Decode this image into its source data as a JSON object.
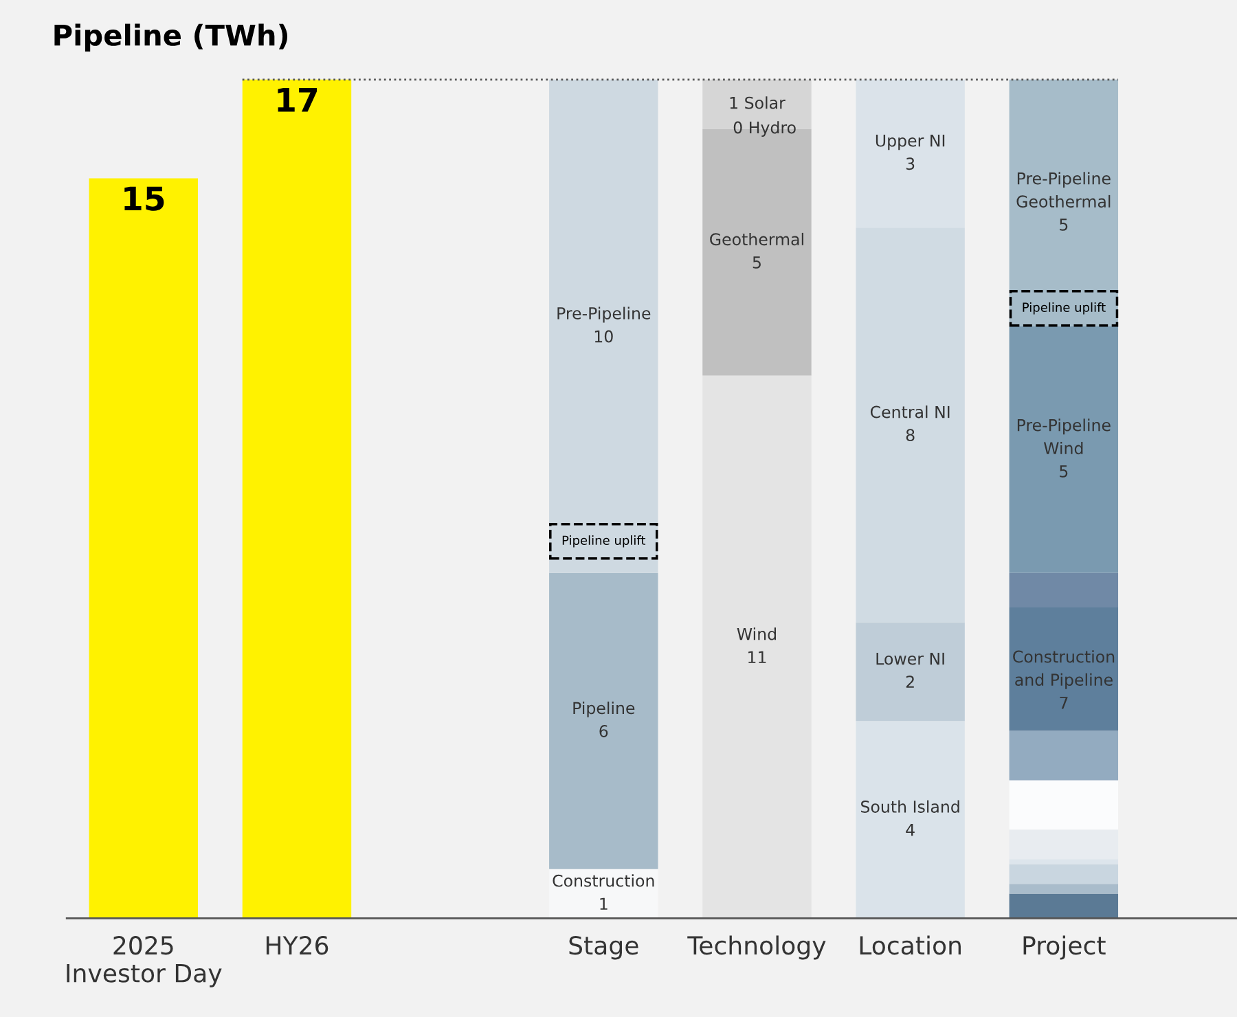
{
  "chart_data": {
    "type": "bar",
    "title": "Pipeline (TWh)",
    "stacked": true,
    "categories": [
      "2025\nInvestor Day",
      "HY26",
      null,
      "Stage",
      "Technology",
      "Location",
      "Project"
    ],
    "tick_labels": "x",
    "grid": false,
    "legend": false,
    "series": [
      {
        "values": [
          15,
          17,
          null,
          1,
          11,
          4,
          0.5
        ],
        "colors": [
          "#fff200",
          "#fff200",
          "#ffffff",
          "#f7f8f9",
          "#e4e4e4",
          "#dae3ea",
          "#5b7a95"
        ],
        "value_labels": [
          "15",
          "17",
          null,
          "Construction\n1",
          "Wind\n11",
          "South Island\n4",
          null
        ]
      },
      {
        "values": [
          null,
          null,
          null,
          6,
          5,
          2,
          0.2
        ],
        "colors": [
          "#ffffff",
          "#ffffff",
          "#ffffff",
          "#a7bbc9",
          "#c0c0c0",
          "#bfcdd8",
          "#a9bccb"
        ],
        "value_labels": [
          null,
          null,
          null,
          "Pipeline\n6",
          "Geothermal\n5",
          "Lower NI\n2",
          null
        ]
      },
      {
        "values": [
          null,
          null,
          null,
          10,
          0,
          8,
          0.4
        ],
        "colors": [
          "#ffffff",
          "#ffffff",
          "#ffffff",
          "#ced9e1",
          "#c8d8e8",
          "#d0dbe3",
          "#c9d6e0"
        ],
        "value_labels": [
          null,
          null,
          null,
          "Pre-Pipeline\n10",
          "0 Hydro",
          "Central NI\n8",
          null
        ]
      },
      {
        "values": [
          null,
          null,
          null,
          null,
          1,
          3,
          0.1
        ],
        "colors": [
          "#ffffff",
          "#ffffff",
          "#ffffff",
          "#ffffff",
          "#d6d6d6",
          "#dbe3ea",
          "#dde5ec"
        ],
        "value_labels": [
          null,
          null,
          null,
          null,
          "1 Solar",
          "Upper NI\n3",
          null
        ]
      },
      {
        "values": [
          null,
          null,
          null,
          null,
          null,
          null,
          0.6
        ],
        "colors": [
          "#ffffff",
          "#ffffff",
          "#ffffff",
          "#ffffff",
          "#ffffff",
          "#ffffff",
          "#e8ecf0"
        ],
        "value_labels": [
          null,
          null,
          null,
          null,
          null,
          null,
          null
        ]
      },
      {
        "values": [
          null,
          null,
          null,
          null,
          null,
          null,
          1.0
        ],
        "colors": [
          "#ffffff",
          "#ffffff",
          "#ffffff",
          "#ffffff",
          "#ffffff",
          "#ffffff",
          "#fbfcfd"
        ],
        "value_labels": [
          null,
          null,
          null,
          null,
          null,
          null,
          null
        ]
      },
      {
        "values": [
          null,
          null,
          null,
          null,
          null,
          null,
          1.0
        ],
        "colors": [
          "#ffffff",
          "#ffffff",
          "#ffffff",
          "#ffffff",
          "#ffffff",
          "#ffffff",
          "#93abc0"
        ],
        "value_labels": [
          null,
          null,
          null,
          null,
          null,
          null,
          null
        ]
      },
      {
        "values": [
          null,
          null,
          null,
          null,
          null,
          null,
          2.5
        ],
        "colors": [
          "#ffffff",
          "#ffffff",
          "#ffffff",
          "#ffffff",
          "#ffffff",
          "#ffffff",
          "#5e7f9c"
        ],
        "value_labels": [
          null,
          null,
          null,
          null,
          null,
          null,
          null
        ]
      },
      {
        "values": [
          null,
          null,
          null,
          null,
          null,
          null,
          0.7
        ],
        "colors": [
          "#ffffff",
          "#ffffff",
          "#ffffff",
          "#ffffff",
          "#ffffff",
          "#ffffff",
          "#7089a6"
        ],
        "value_labels": [
          null,
          null,
          null,
          null,
          null,
          null,
          null
        ]
      },
      {
        "values": [
          null,
          null,
          null,
          null,
          null,
          null,
          5
        ],
        "colors": [
          "#ffffff",
          "#ffffff",
          "#ffffff",
          "#ffffff",
          "#ffffff",
          "#ffffff",
          "#7a9ab0"
        ],
        "value_labels": [
          null,
          null,
          null,
          null,
          null,
          null,
          "Pre-Pipeline\nWind\n5"
        ]
      },
      {
        "values": [
          null,
          null,
          null,
          null,
          null,
          null,
          5
        ],
        "colors": [
          "#ffffff",
          "#ffffff",
          "#ffffff",
          "#ffffff",
          "#ffffff",
          "#ffffff",
          "#a6bcc9"
        ],
        "value_labels": [
          null,
          null,
          null,
          null,
          null,
          null,
          "Pre-Pipeline\nGeothermal\n5"
        ]
      }
    ],
    "ref_lines": [
      {
        "axis": "y",
        "value": 17,
        "line_style": "dotted",
        "color": "#555555"
      }
    ],
    "annotations": [
      "Pipeline uplift",
      "Pipeline uplift",
      "Construction\nand Pipeline\n7"
    ]
  }
}
